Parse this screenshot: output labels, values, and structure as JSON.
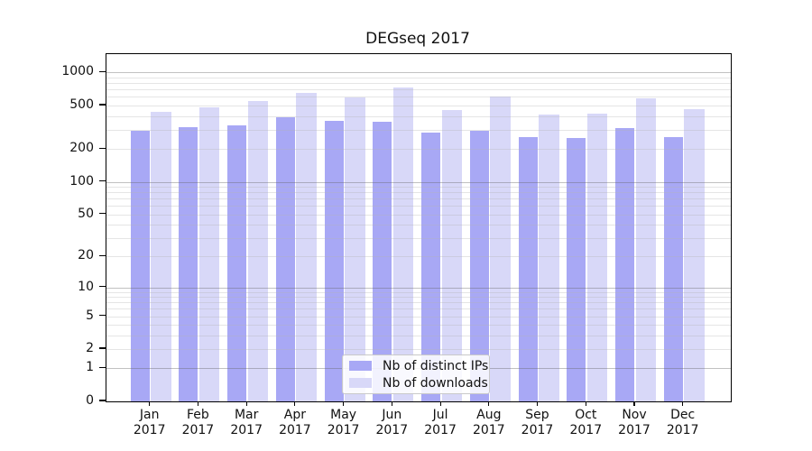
{
  "title": "DEGseq 2017",
  "chart_data": {
    "type": "bar",
    "title": "DEGseq 2017",
    "yscale": "log10(1+y)",
    "ylim": [
      0,
      1475
    ],
    "grid": true,
    "yticks": [
      1000,
      500,
      200,
      100,
      50,
      20,
      10,
      5,
      2,
      1,
      0
    ],
    "grid_major": [
      1,
      10,
      100,
      1000
    ],
    "grid_minor": [
      2,
      3,
      4,
      5,
      6,
      7,
      8,
      9,
      20,
      30,
      40,
      50,
      60,
      70,
      80,
      90,
      200,
      300,
      400,
      500,
      600,
      700,
      800,
      900
    ],
    "months": [
      "Jan",
      "Feb",
      "Mar",
      "Apr",
      "May",
      "Jun",
      "Jul",
      "Aug",
      "Sep",
      "Oct",
      "Nov",
      "Dec"
    ],
    "year": "2017",
    "categories": [
      "Jan 2017",
      "Feb 2017",
      "Mar 2017",
      "Apr 2017",
      "May 2017",
      "Jun 2017",
      "Jul 2017",
      "Aug 2017",
      "Sep 2017",
      "Oct 2017",
      "Nov 2017",
      "Dec 2017"
    ],
    "series": [
      {
        "name": "Nb of distinct IPs",
        "color": "#a8a8f5",
        "values": [
          295,
          316,
          331,
          389,
          361,
          352,
          282,
          293,
          258,
          251,
          310,
          258
        ]
      },
      {
        "name": "Nb of downloads",
        "color": "#d8d8f8",
        "values": [
          434,
          484,
          552,
          650,
          588,
          729,
          451,
          603,
          412,
          418,
          580,
          465
        ]
      }
    ],
    "legend_position": "bottom-center"
  },
  "colors": {
    "axis": "#000000",
    "major_grid": "#c1c1c1",
    "minor_grid": "#e9e9e9",
    "background": "#ffffff"
  }
}
